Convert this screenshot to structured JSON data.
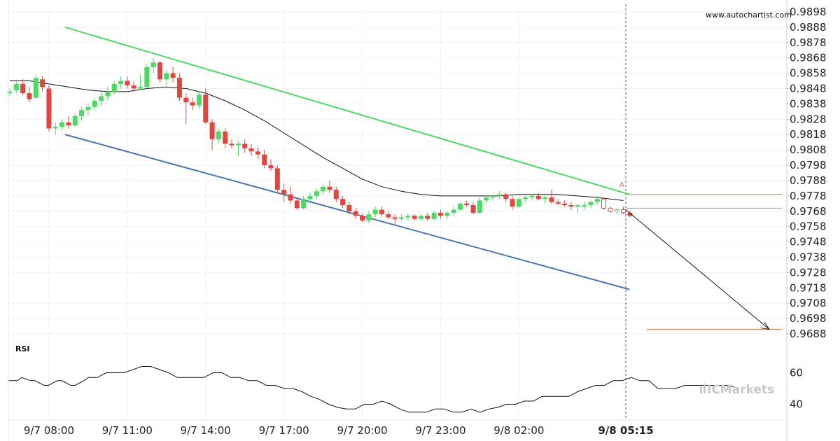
{
  "watermark": "www.autochartist.com",
  "brand": "ICMarkets",
  "rsi_title": "RSI",
  "pattern_point_label": "A",
  "chart_data": [
    {
      "type": "candlestick",
      "title": "",
      "ylim": [
        0.9683,
        0.9903
      ],
      "y_ticks": [
        "0.9898",
        "0.9888",
        "0.9878",
        "0.9868",
        "0.9858",
        "0.9848",
        "0.9838",
        "0.9828",
        "0.9818",
        "0.9808",
        "0.9798",
        "0.9788",
        "0.9778",
        "0.9768",
        "0.9758",
        "0.9748",
        "0.9738",
        "0.9728",
        "0.9718",
        "0.9708",
        "0.9698",
        "0.9688"
      ],
      "x_ticks": [
        {
          "label": "9/7 08:00",
          "bold": false
        },
        {
          "label": "9/7 11:00",
          "bold": false
        },
        {
          "label": "9/7 14:00",
          "bold": false
        },
        {
          "label": "9/7 17:00",
          "bold": false
        },
        {
          "label": "9/7 20:00",
          "bold": false
        },
        {
          "label": "9/7 23:00",
          "bold": false
        },
        {
          "label": "9/8 02:00",
          "bold": false
        },
        {
          "label": "9/8 05:15",
          "bold": true
        }
      ],
      "bar_interval": "15 min",
      "candles": [
        [
          0.9845,
          0.9848,
          0.9843,
          0.9846
        ],
        [
          0.9847,
          0.9853,
          0.9845,
          0.9851
        ],
        [
          0.9851,
          0.9854,
          0.9844,
          0.9845
        ],
        [
          0.9845,
          0.9849,
          0.9839,
          0.9841
        ],
        [
          0.9842,
          0.9857,
          0.9841,
          0.9855
        ],
        [
          0.9854,
          0.9856,
          0.9846,
          0.9849
        ],
        [
          0.9848,
          0.985,
          0.982,
          0.9822
        ],
        [
          0.9822,
          0.9826,
          0.9818,
          0.9823
        ],
        [
          0.9823,
          0.9828,
          0.9821,
          0.9826
        ],
        [
          0.9826,
          0.983,
          0.9822,
          0.9824
        ],
        [
          0.9824,
          0.9832,
          0.9823,
          0.983
        ],
        [
          0.983,
          0.9836,
          0.9827,
          0.9834
        ],
        [
          0.9834,
          0.9838,
          0.983,
          0.9836
        ],
        [
          0.9836,
          0.9842,
          0.9833,
          0.984
        ],
        [
          0.984,
          0.9846,
          0.9837,
          0.9843
        ],
        [
          0.9843,
          0.9849,
          0.984,
          0.9846
        ],
        [
          0.9846,
          0.9853,
          0.9844,
          0.9851
        ],
        [
          0.9851,
          0.9856,
          0.9848,
          0.9853
        ],
        [
          0.9853,
          0.9856,
          0.9848,
          0.985
        ],
        [
          0.985,
          0.9853,
          0.9846,
          0.9848
        ],
        [
          0.9848,
          0.9857,
          0.9847,
          0.9849
        ],
        [
          0.9849,
          0.9864,
          0.9848,
          0.9862
        ],
        [
          0.9862,
          0.9868,
          0.9858,
          0.9865
        ],
        [
          0.9865,
          0.9866,
          0.9852,
          0.9854
        ],
        [
          0.9854,
          0.986,
          0.985,
          0.9858
        ],
        [
          0.9858,
          0.9862,
          0.9852,
          0.9855
        ],
        [
          0.9855,
          0.9858,
          0.984,
          0.9842
        ],
        [
          0.9842,
          0.9845,
          0.9825,
          0.9839
        ],
        [
          0.9839,
          0.9842,
          0.9834,
          0.9837
        ],
        [
          0.9837,
          0.9846,
          0.9835,
          0.9844
        ],
        [
          0.9844,
          0.9848,
          0.9825,
          0.9826
        ],
        [
          0.9826,
          0.9828,
          0.9808,
          0.9815
        ],
        [
          0.9815,
          0.9822,
          0.9812,
          0.982
        ],
        [
          0.982,
          0.9822,
          0.9809,
          0.9812
        ],
        [
          0.9812,
          0.9815,
          0.9809,
          0.9811
        ],
        [
          0.9811,
          0.9814,
          0.9804,
          0.9812
        ],
        [
          0.9812,
          0.9815,
          0.9806,
          0.9809
        ],
        [
          0.9809,
          0.9812,
          0.9804,
          0.9807
        ],
        [
          0.9807,
          0.981,
          0.9802,
          0.9805
        ],
        [
          0.9805,
          0.9808,
          0.9796,
          0.9798
        ],
        [
          0.9798,
          0.9802,
          0.9794,
          0.9796
        ],
        [
          0.9796,
          0.9798,
          0.978,
          0.9782
        ],
        [
          0.9782,
          0.9786,
          0.9774,
          0.9779
        ],
        [
          0.9779,
          0.9784,
          0.9773,
          0.9775
        ],
        [
          0.9775,
          0.9777,
          0.9769,
          0.977
        ],
        [
          0.977,
          0.9778,
          0.9769,
          0.9776
        ],
        [
          0.9776,
          0.978,
          0.9773,
          0.9778
        ],
        [
          0.9778,
          0.9783,
          0.9776,
          0.9781
        ],
        [
          0.9781,
          0.9786,
          0.9779,
          0.9784
        ],
        [
          0.9784,
          0.9788,
          0.978,
          0.9782
        ],
        [
          0.9782,
          0.9784,
          0.9774,
          0.9776
        ],
        [
          0.9776,
          0.9778,
          0.977,
          0.9772
        ],
        [
          0.9772,
          0.9774,
          0.9766,
          0.9768
        ],
        [
          0.9768,
          0.977,
          0.9763,
          0.9765
        ],
        [
          0.9765,
          0.9767,
          0.9761,
          0.9762
        ],
        [
          0.9762,
          0.9768,
          0.976,
          0.9766
        ],
        [
          0.9766,
          0.9771,
          0.9764,
          0.9769
        ],
        [
          0.9769,
          0.9771,
          0.9764,
          0.9766
        ],
        [
          0.9766,
          0.9768,
          0.9763,
          0.9764
        ],
        [
          0.9764,
          0.9766,
          0.9759,
          0.9763
        ],
        [
          0.9763,
          0.9766,
          0.9762,
          0.9764
        ],
        [
          0.9764,
          0.9766,
          0.9762,
          0.9765
        ],
        [
          0.9765,
          0.9766,
          0.9762,
          0.9763
        ],
        [
          0.9763,
          0.9766,
          0.9762,
          0.9765
        ],
        [
          0.9765,
          0.9767,
          0.9762,
          0.9763
        ],
        [
          0.9763,
          0.9768,
          0.9762,
          0.9767
        ],
        [
          0.9767,
          0.9769,
          0.9763,
          0.9765
        ],
        [
          0.9765,
          0.9768,
          0.9763,
          0.9767
        ],
        [
          0.9767,
          0.9771,
          0.9765,
          0.9769
        ],
        [
          0.9769,
          0.9774,
          0.9768,
          0.9773
        ],
        [
          0.9773,
          0.9775,
          0.9771,
          0.9772
        ],
        [
          0.9772,
          0.9774,
          0.9766,
          0.9767
        ],
        [
          0.9767,
          0.9777,
          0.9766,
          0.9775
        ],
        [
          0.9775,
          0.9778,
          0.9773,
          0.9777
        ],
        [
          0.9777,
          0.9779,
          0.9775,
          0.9778
        ],
        [
          0.9778,
          0.9781,
          0.9776,
          0.9779
        ],
        [
          0.9779,
          0.978,
          0.9774,
          0.9776
        ],
        [
          0.9776,
          0.9778,
          0.9769,
          0.9771
        ],
        [
          0.9771,
          0.9777,
          0.977,
          0.9776
        ],
        [
          0.9776,
          0.9778,
          0.9774,
          0.9777
        ],
        [
          0.9777,
          0.9779,
          0.9775,
          0.9778
        ],
        [
          0.9778,
          0.978,
          0.9775,
          0.9776
        ],
        [
          0.9776,
          0.9778,
          0.9773,
          0.9777
        ],
        [
          0.9777,
          0.9782,
          0.9773,
          0.9774
        ],
        [
          0.9774,
          0.9776,
          0.9772,
          0.9773
        ],
        [
          0.9773,
          0.9775,
          0.9771,
          0.9772
        ],
        [
          0.9772,
          0.9774,
          0.9769,
          0.9771
        ],
        [
          0.9771,
          0.9773,
          0.9767,
          0.9772
        ],
        [
          0.9772,
          0.9774,
          0.9769,
          0.9772
        ],
        [
          0.9772,
          0.9775,
          0.977,
          0.9774
        ],
        [
          0.9774,
          0.9778,
          0.9772,
          0.9776
        ],
        [
          0.9776,
          0.9777,
          0.9769,
          0.977
        ],
        [
          0.977,
          0.9771,
          0.9767,
          0.9768
        ],
        [
          0.9768,
          0.977,
          0.9766,
          0.9769
        ],
        [
          0.9769,
          0.9771,
          0.9766,
          0.9767
        ],
        [
          0.9767,
          0.9768,
          0.9764,
          0.9765
        ]
      ],
      "projected_candles": [
        91,
        92,
        93,
        94
      ],
      "moving_average": [
        [
          0,
          0.9853
        ],
        [
          3,
          0.9853
        ],
        [
          6,
          0.9851
        ],
        [
          9,
          0.9849
        ],
        [
          12,
          0.9847
        ],
        [
          15,
          0.9846
        ],
        [
          18,
          0.9846
        ],
        [
          21,
          0.9848
        ],
        [
          24,
          0.9849
        ],
        [
          27,
          0.9848
        ],
        [
          30,
          0.9845
        ],
        [
          33,
          0.984
        ],
        [
          36,
          0.9834
        ],
        [
          39,
          0.9827
        ],
        [
          42,
          0.9819
        ],
        [
          45,
          0.9811
        ],
        [
          48,
          0.9803
        ],
        [
          51,
          0.9796
        ],
        [
          54,
          0.9789
        ],
        [
          57,
          0.9784
        ],
        [
          60,
          0.9781
        ],
        [
          63,
          0.9779
        ],
        [
          66,
          0.9778
        ],
        [
          69,
          0.9778
        ],
        [
          72,
          0.9778
        ],
        [
          75,
          0.9778
        ],
        [
          78,
          0.9779
        ],
        [
          81,
          0.9779
        ],
        [
          84,
          0.9779
        ],
        [
          87,
          0.9778
        ],
        [
          90,
          0.9777
        ],
        [
          94,
          0.9775
        ]
      ],
      "channel": {
        "upper": {
          "from": [
            6,
            0.9888
          ],
          "to": [
            90,
            0.9779
          ]
        },
        "lower": {
          "from": [
            6,
            0.9818
          ],
          "to": [
            90,
            0.9717
          ]
        }
      },
      "breakout_bar": 90,
      "levels": [
        {
          "from_bar": 90,
          "to_bar": 110,
          "value": 0.9779
        },
        {
          "from_bar": 90,
          "to_bar": 110,
          "value": 0.977
        },
        {
          "from_bar": 93,
          "to_bar": 110,
          "value": 0.9691
        }
      ],
      "forecast_arrow": {
        "from": [
          90,
          0.9769
        ],
        "to": [
          110,
          0.9691
        ]
      }
    },
    {
      "type": "line",
      "title": "RSI",
      "ylim": [
        30,
        70
      ],
      "y_ticks": [
        "60",
        "40"
      ],
      "values": [
        [
          0,
          55
        ],
        [
          2,
          55
        ],
        [
          3,
          57
        ],
        [
          5,
          55
        ],
        [
          6,
          55
        ],
        [
          8,
          52
        ],
        [
          9,
          52
        ],
        [
          11,
          55
        ],
        [
          12,
          55
        ],
        [
          14,
          52
        ],
        [
          15,
          52
        ],
        [
          17,
          55
        ],
        [
          18,
          57
        ],
        [
          20,
          57
        ],
        [
          22,
          60
        ],
        [
          24,
          60
        ],
        [
          26,
          60
        ],
        [
          28,
          62
        ],
        [
          30,
          64
        ],
        [
          32,
          64
        ],
        [
          34,
          62
        ],
        [
          36,
          60
        ],
        [
          38,
          57
        ],
        [
          40,
          57
        ],
        [
          42,
          57
        ],
        [
          44,
          57
        ],
        [
          46,
          60
        ],
        [
          48,
          60
        ],
        [
          50,
          57
        ],
        [
          52,
          57
        ],
        [
          54,
          55
        ],
        [
          56,
          55
        ],
        [
          58,
          52
        ],
        [
          60,
          52
        ],
        [
          62,
          50
        ],
        [
          64,
          50
        ],
        [
          66,
          48
        ],
        [
          68,
          45
        ],
        [
          70,
          43
        ],
        [
          72,
          40
        ],
        [
          74,
          38
        ],
        [
          76,
          37
        ],
        [
          78,
          37
        ],
        [
          80,
          40
        ],
        [
          82,
          40
        ],
        [
          84,
          42
        ],
        [
          86,
          40
        ],
        [
          88,
          37
        ],
        [
          90,
          35
        ],
        [
          92,
          35
        ],
        [
          94,
          35
        ],
        [
          96,
          37
        ],
        [
          98,
          37
        ],
        [
          100,
          35
        ],
        [
          102,
          35
        ],
        [
          104,
          37
        ],
        [
          106,
          35
        ],
        [
          108,
          37
        ],
        [
          110,
          38
        ],
        [
          112,
          40
        ],
        [
          114,
          40
        ],
        [
          116,
          42
        ],
        [
          118,
          42
        ],
        [
          120,
          45
        ],
        [
          122,
          45
        ],
        [
          124,
          45
        ],
        [
          126,
          45
        ],
        [
          128,
          48
        ],
        [
          130,
          50
        ],
        [
          132,
          52
        ],
        [
          134,
          52
        ],
        [
          136,
          55
        ],
        [
          138,
          55
        ],
        [
          140,
          57
        ],
        [
          142,
          55
        ],
        [
          144,
          55
        ],
        [
          146,
          50
        ],
        [
          148,
          50
        ],
        [
          150,
          50
        ],
        [
          152,
          52
        ],
        [
          154,
          52
        ],
        [
          156,
          52
        ],
        [
          158,
          52
        ],
        [
          160,
          52
        ],
        [
          162,
          52
        ],
        [
          164,
          50
        ]
      ]
    }
  ]
}
